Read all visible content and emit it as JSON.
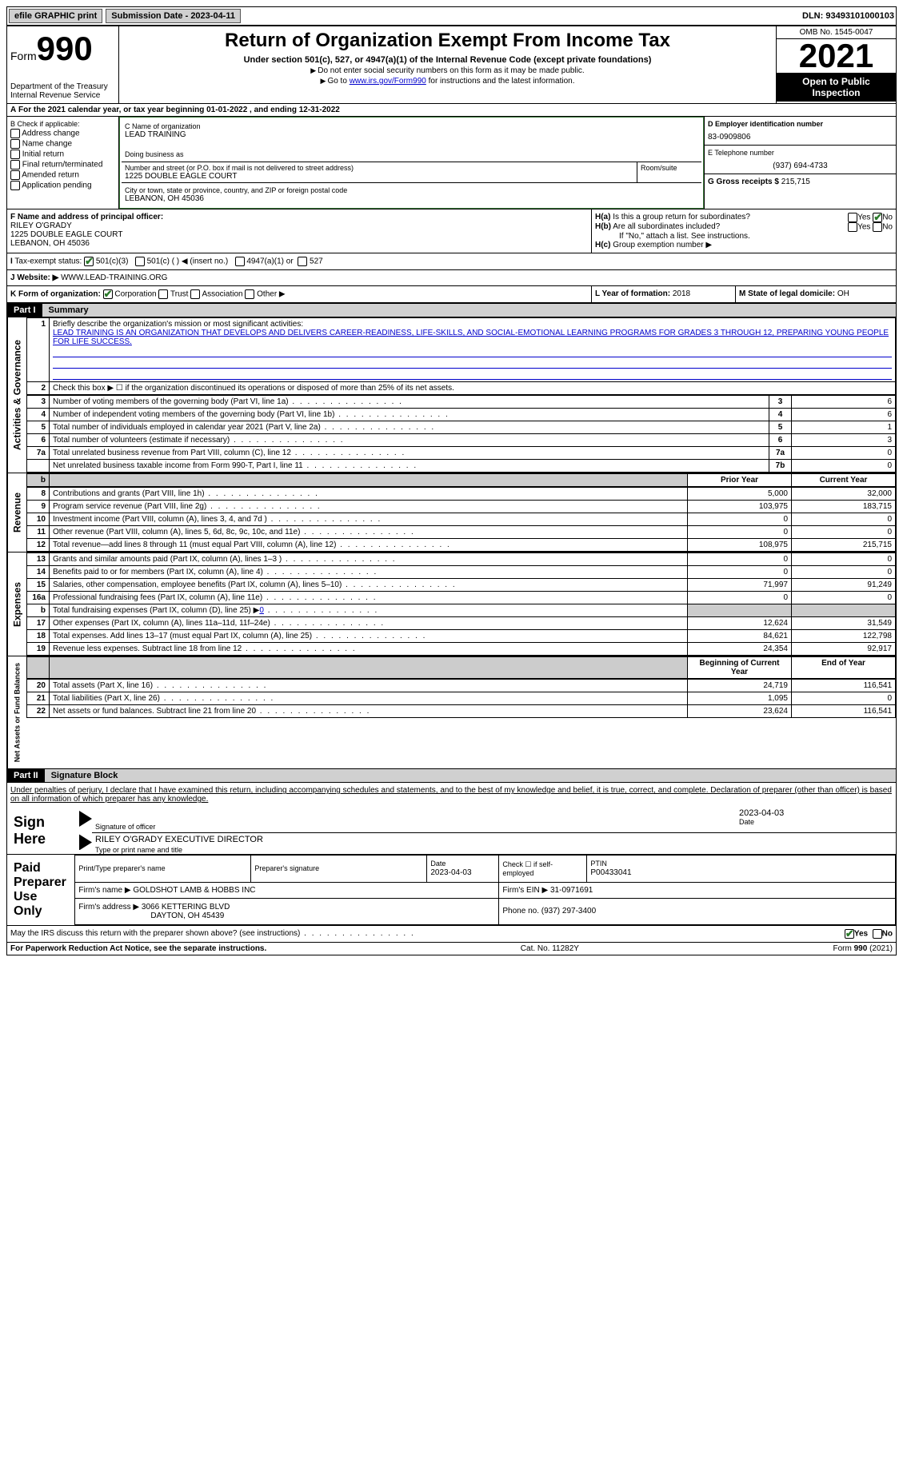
{
  "topbar": {
    "efile": "efile GRAPHIC print",
    "submission": "Submission Date - 2023-04-11",
    "dln": "DLN: 93493101000103"
  },
  "header": {
    "form_label": "Form",
    "form_num": "990",
    "dept": "Department of the Treasury Internal Revenue Service",
    "title": "Return of Organization Exempt From Income Tax",
    "subtitle": "Under section 501(c), 527, or 4947(a)(1) of the Internal Revenue Code (except private foundations)",
    "note1": "Do not enter social security numbers on this form as it may be made public.",
    "note2_pre": "Go to ",
    "note2_link": "www.irs.gov/Form990",
    "note2_post": " for instructions and the latest information.",
    "omb": "OMB No. 1545-0047",
    "year": "2021",
    "inspection": "Open to Public Inspection"
  },
  "section_a": {
    "text_pre": "For the 2021 calendar year, or tax year beginning ",
    "begin": "01-01-2022",
    "mid": " , and ending ",
    "end": "12-31-2022"
  },
  "section_b": {
    "label": "B Check if applicable:",
    "items": [
      "Address change",
      "Name change",
      "Initial return",
      "Final return/terminated",
      "Amended return",
      "Application pending"
    ]
  },
  "section_c": {
    "name_label": "C Name of organization",
    "name": "LEAD TRAINING",
    "dba_label": "Doing business as",
    "dba": "",
    "street_label": "Number and street (or P.O. box if mail is not delivered to street address)",
    "street": "1225 DOUBLE EAGLE COURT",
    "room_label": "Room/suite",
    "room": "",
    "city_label": "City or town, state or province, country, and ZIP or foreign postal code",
    "city": "LEBANON, OH  45036"
  },
  "section_d": {
    "label": "D Employer identification number",
    "value": "83-0909806"
  },
  "section_e": {
    "label": "E Telephone number",
    "value": "(937) 694-4733"
  },
  "section_g": {
    "label": "G Gross receipts $",
    "value": "215,715"
  },
  "section_f": {
    "label": "F Name and address of principal officer:",
    "name": "RILEY O'GRADY",
    "addr1": "1225 DOUBLE EAGLE COURT",
    "addr2": "LEBANON, OH  45036"
  },
  "section_h": {
    "a": "Is this a group return for subordinates?",
    "b": "Are all subordinates included?",
    "b_note": "If \"No,\" attach a list. See instructions.",
    "c": "Group exemption number ▶",
    "yes": "Yes",
    "no": "No"
  },
  "section_i": {
    "label": "Tax-exempt status:",
    "opts": [
      "501(c)(3)",
      "501(c) (  ) ◀ (insert no.)",
      "4947(a)(1) or",
      "527"
    ]
  },
  "section_j": {
    "label": "Website: ▶",
    "value": "WWW.LEAD-TRAINING.ORG"
  },
  "section_k": {
    "label": "K Form of organization:",
    "opts": [
      "Corporation",
      "Trust",
      "Association",
      "Other ▶"
    ]
  },
  "section_l": {
    "label": "L Year of formation:",
    "value": "2018"
  },
  "section_m": {
    "label": "M State of legal domicile:",
    "value": "OH"
  },
  "part1": {
    "hdr": "Part I",
    "title": "Summary",
    "line1_label": "Briefly describe the organization's mission or most significant activities:",
    "line1_text": "LEAD TRAINING IS AN ORGANIZATION THAT DEVELOPS AND DELIVERS CAREER-READINESS, LIFE-SKILLS, AND SOCIAL-EMOTIONAL LEARNING PROGRAMS FOR GRADES 3 THROUGH 12, PREPARING YOUNG PEOPLE FOR LIFE SUCCESS.",
    "line2": "Check this box ▶ ☐ if the organization discontinued its operations or disposed of more than 25% of its net assets.",
    "sections": {
      "governance": "Activities & Governance",
      "revenue": "Revenue",
      "expenses": "Expenses",
      "netassets": "Net Assets or Fund Balances"
    },
    "rows_gov": [
      {
        "n": "3",
        "d": "Number of voting members of the governing body (Part VI, line 1a)",
        "b": "3",
        "v": "6"
      },
      {
        "n": "4",
        "d": "Number of independent voting members of the governing body (Part VI, line 1b)",
        "b": "4",
        "v": "6"
      },
      {
        "n": "5",
        "d": "Total number of individuals employed in calendar year 2021 (Part V, line 2a)",
        "b": "5",
        "v": "1"
      },
      {
        "n": "6",
        "d": "Total number of volunteers (estimate if necessary)",
        "b": "6",
        "v": "3"
      },
      {
        "n": "7a",
        "d": "Total unrelated business revenue from Part VIII, column (C), line 12",
        "b": "7a",
        "v": "0"
      },
      {
        "n": "",
        "d": "Net unrelated business taxable income from Form 990-T, Part I, line 11",
        "b": "7b",
        "v": "0"
      }
    ],
    "hdr_prior": "Prior Year",
    "hdr_current": "Current Year",
    "rows_rev": [
      {
        "n": "8",
        "d": "Contributions and grants (Part VIII, line 1h)",
        "p": "5,000",
        "c": "32,000"
      },
      {
        "n": "9",
        "d": "Program service revenue (Part VIII, line 2g)",
        "p": "103,975",
        "c": "183,715"
      },
      {
        "n": "10",
        "d": "Investment income (Part VIII, column (A), lines 3, 4, and 7d )",
        "p": "0",
        "c": "0"
      },
      {
        "n": "11",
        "d": "Other revenue (Part VIII, column (A), lines 5, 6d, 8c, 9c, 10c, and 11e)",
        "p": "0",
        "c": "0"
      },
      {
        "n": "12",
        "d": "Total revenue—add lines 8 through 11 (must equal Part VIII, column (A), line 12)",
        "p": "108,975",
        "c": "215,715"
      }
    ],
    "rows_exp": [
      {
        "n": "13",
        "d": "Grants and similar amounts paid (Part IX, column (A), lines 1–3 )",
        "p": "0",
        "c": "0"
      },
      {
        "n": "14",
        "d": "Benefits paid to or for members (Part IX, column (A), line 4)",
        "p": "0",
        "c": "0"
      },
      {
        "n": "15",
        "d": "Salaries, other compensation, employee benefits (Part IX, column (A), lines 5–10)",
        "p": "71,997",
        "c": "91,249"
      },
      {
        "n": "16a",
        "d": "Professional fundraising fees (Part IX, column (A), line 11e)",
        "p": "0",
        "c": "0"
      },
      {
        "n": "b",
        "d": "Total fundraising expenses (Part IX, column (D), line 25) ▶",
        "p": "shaded",
        "c": "shaded",
        "extra": "0"
      },
      {
        "n": "17",
        "d": "Other expenses (Part IX, column (A), lines 11a–11d, 11f–24e)",
        "p": "12,624",
        "c": "31,549"
      },
      {
        "n": "18",
        "d": "Total expenses. Add lines 13–17 (must equal Part IX, column (A), line 25)",
        "p": "84,621",
        "c": "122,798"
      },
      {
        "n": "19",
        "d": "Revenue less expenses. Subtract line 18 from line 12",
        "p": "24,354",
        "c": "92,917"
      }
    ],
    "hdr_begin": "Beginning of Current Year",
    "hdr_end": "End of Year",
    "rows_net": [
      {
        "n": "20",
        "d": "Total assets (Part X, line 16)",
        "p": "24,719",
        "c": "116,541"
      },
      {
        "n": "21",
        "d": "Total liabilities (Part X, line 26)",
        "p": "1,095",
        "c": "0"
      },
      {
        "n": "22",
        "d": "Net assets or fund balances. Subtract line 21 from line 20",
        "p": "23,624",
        "c": "116,541"
      }
    ]
  },
  "part2": {
    "hdr": "Part II",
    "title": "Signature Block",
    "declaration": "Under penalties of perjury, I declare that I have examined this return, including accompanying schedules and statements, and to the best of my knowledge and belief, it is true, correct, and complete. Declaration of preparer (other than officer) is based on all information of which preparer has any knowledge.",
    "sign_here": "Sign Here",
    "sig_officer": "Signature of officer",
    "sig_date": "2023-04-03",
    "date_label": "Date",
    "name_title": "RILEY O'GRADY  EXECUTIVE DIRECTOR",
    "name_title_label": "Type or print name and title",
    "paid": "Paid Preparer Use Only",
    "prep_name_label": "Print/Type preparer's name",
    "prep_name": "",
    "prep_sig_label": "Preparer's signature",
    "prep_date_label": "Date",
    "prep_date": "2023-04-03",
    "self_emp": "Check ☐ if self-employed",
    "ptin_label": "PTIN",
    "ptin": "P00433041",
    "firm_name_label": "Firm's name    ▶",
    "firm_name": "GOLDSHOT LAMB & HOBBS INC",
    "firm_ein_label": "Firm's EIN ▶",
    "firm_ein": "31-0971691",
    "firm_addr_label": "Firm's address ▶",
    "firm_addr1": "3066 KETTERING BLVD",
    "firm_addr2": "DAYTON, OH  45439",
    "phone_label": "Phone no.",
    "phone": "(937) 297-3400",
    "may_irs": "May the IRS discuss this return with the preparer shown above? (see instructions)",
    "yes": "Yes",
    "no": "No"
  },
  "footer": {
    "left": "For Paperwork Reduction Act Notice, see the separate instructions.",
    "mid": "Cat. No. 11282Y",
    "right": "Form 990 (2021)"
  }
}
